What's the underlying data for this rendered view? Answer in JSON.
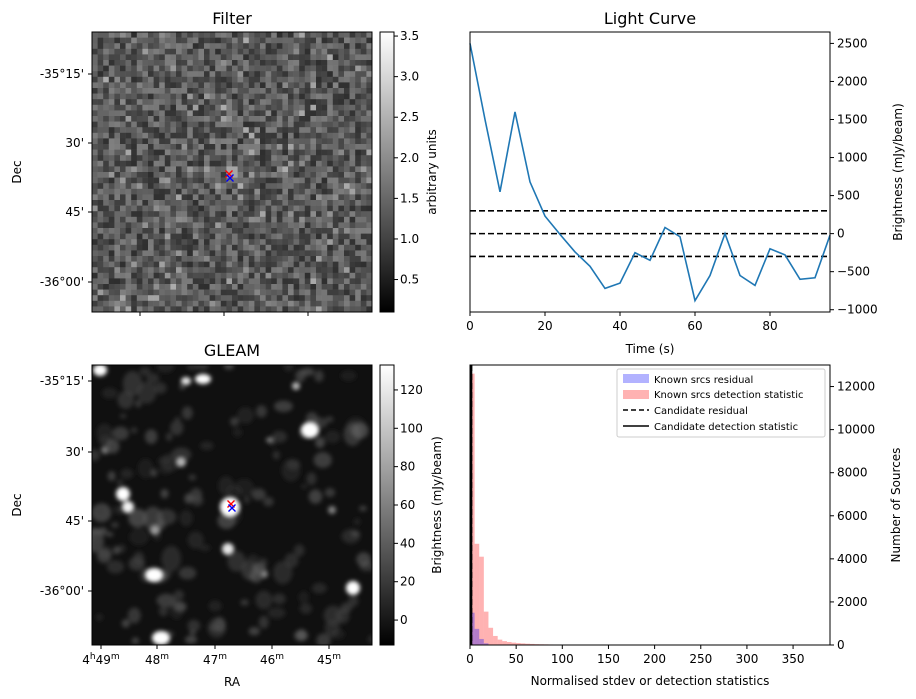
{
  "chart_data": [
    {
      "id": "filter",
      "type": "heatmap",
      "title": "Filter",
      "xlabel": "",
      "ylabel": "Dec",
      "ytick_labels": [
        "-35°15'",
        "30'",
        "45'",
        "-36°00'"
      ],
      "colorbar": {
        "label": "arbitrary units",
        "range": [
          0.1,
          3.55
        ],
        "ticks": [
          0.5,
          1.0,
          1.5,
          2.0,
          2.5,
          3.0,
          3.5
        ],
        "tick_labels": [
          "0.5",
          "1.0",
          "1.5",
          "2.0",
          "2.5",
          "3.0",
          "3.5"
        ]
      },
      "grid_cells": [
        50,
        50
      ],
      "markers": [
        {
          "symbol": "x",
          "color": "#ff0000"
        },
        {
          "symbol": "x",
          "color": "#0000ff"
        }
      ]
    },
    {
      "id": "light_curve",
      "type": "line",
      "title": "Light Curve",
      "xlabel": "Time (s)",
      "ylabel": "Brightness (mJy/beam)",
      "xlim": [
        0,
        96
      ],
      "ylim": [
        -1030,
        2650
      ],
      "xticks": [
        0,
        20,
        40,
        60,
        80
      ],
      "yticks": [
        -1000,
        -500,
        0,
        500,
        1000,
        1500,
        2000,
        2500
      ],
      "x": [
        0,
        4,
        8,
        12,
        16,
        20,
        24,
        28,
        32,
        36,
        40,
        44,
        48,
        52,
        56,
        60,
        64,
        68,
        72,
        76,
        80,
        84,
        88,
        92,
        96
      ],
      "series": [
        {
          "color": "#1f77b4",
          "values": [
            2500,
            1500,
            550,
            1600,
            680,
            230,
            -10,
            -240,
            -430,
            -720,
            -650,
            -250,
            -350,
            80,
            -40,
            -880,
            -550,
            0,
            -550,
            -680,
            -200,
            -280,
            -600,
            -580,
            -20
          ]
        }
      ],
      "hlines": [
        {
          "y": 300,
          "style": "dashed",
          "color": "#000000"
        },
        {
          "y": 0,
          "style": "dashed",
          "color": "#000000"
        },
        {
          "y": -300,
          "style": "dashed",
          "color": "#000000"
        }
      ]
    },
    {
      "id": "gleam",
      "type": "heatmap",
      "title": "GLEAM",
      "xlabel": "RA",
      "ylabel": "Dec",
      "xtick_labels": [
        "4h49m",
        "48m",
        "47m",
        "46m",
        "45m"
      ],
      "ytick_labels": [
        "-35°15'",
        "30'",
        "45'",
        "-36°00'"
      ],
      "colorbar": {
        "label": "Brightness (mJy/beam)",
        "range": [
          -13,
          133
        ],
        "ticks": [
          0,
          20,
          40,
          60,
          80,
          100,
          120
        ],
        "tick_labels": [
          "0",
          "20",
          "40",
          "60",
          "80",
          "100",
          "120"
        ]
      },
      "markers": [
        {
          "symbol": "x",
          "color": "#ff0000"
        },
        {
          "symbol": "x",
          "color": "#0000ff"
        }
      ]
    },
    {
      "id": "histogram",
      "type": "bar",
      "title": "",
      "xlabel": "Normalised stdev or detection statistics",
      "ylabel": "Number of Sources",
      "xlim": [
        0,
        390
      ],
      "ylim": [
        0,
        13000
      ],
      "xticks": [
        0,
        50,
        100,
        150,
        200,
        250,
        300,
        350
      ],
      "yticks": [
        0,
        2000,
        4000,
        6000,
        8000,
        10000,
        12000
      ],
      "bin_width": 5,
      "series": [
        {
          "name": "Known srcs residual",
          "color": "#0000ff",
          "alpha": 0.3,
          "bins_start": [
            0,
            5,
            10,
            15,
            20
          ],
          "values": [
            1500,
            750,
            280,
            80,
            20
          ]
        },
        {
          "name": "Known srcs detection statistic",
          "color": "#ff0000",
          "alpha": 0.3,
          "bins_start": [
            0,
            5,
            10,
            15,
            20,
            25,
            30,
            35,
            40,
            45,
            50,
            55,
            60,
            65,
            70,
            75,
            80,
            85,
            90,
            95,
            100,
            110,
            125,
            150,
            175,
            200,
            225,
            250,
            275,
            300,
            325,
            350,
            375
          ],
          "values": [
            12600,
            4700,
            4100,
            1550,
            800,
            420,
            250,
            180,
            140,
            110,
            90,
            75,
            60,
            50,
            40,
            35,
            30,
            25,
            20,
            20,
            15,
            12,
            10,
            8,
            6,
            5,
            4,
            3,
            3,
            2,
            2,
            1,
            1
          ]
        }
      ],
      "vlines": [
        {
          "name": "Candidate residual",
          "x": 1.5,
          "style": "dashed",
          "color": "#000000"
        },
        {
          "name": "Candidate detection statistic",
          "x": 1.5,
          "style": "solid",
          "color": "#000000"
        }
      ],
      "legend": "top-right"
    }
  ]
}
